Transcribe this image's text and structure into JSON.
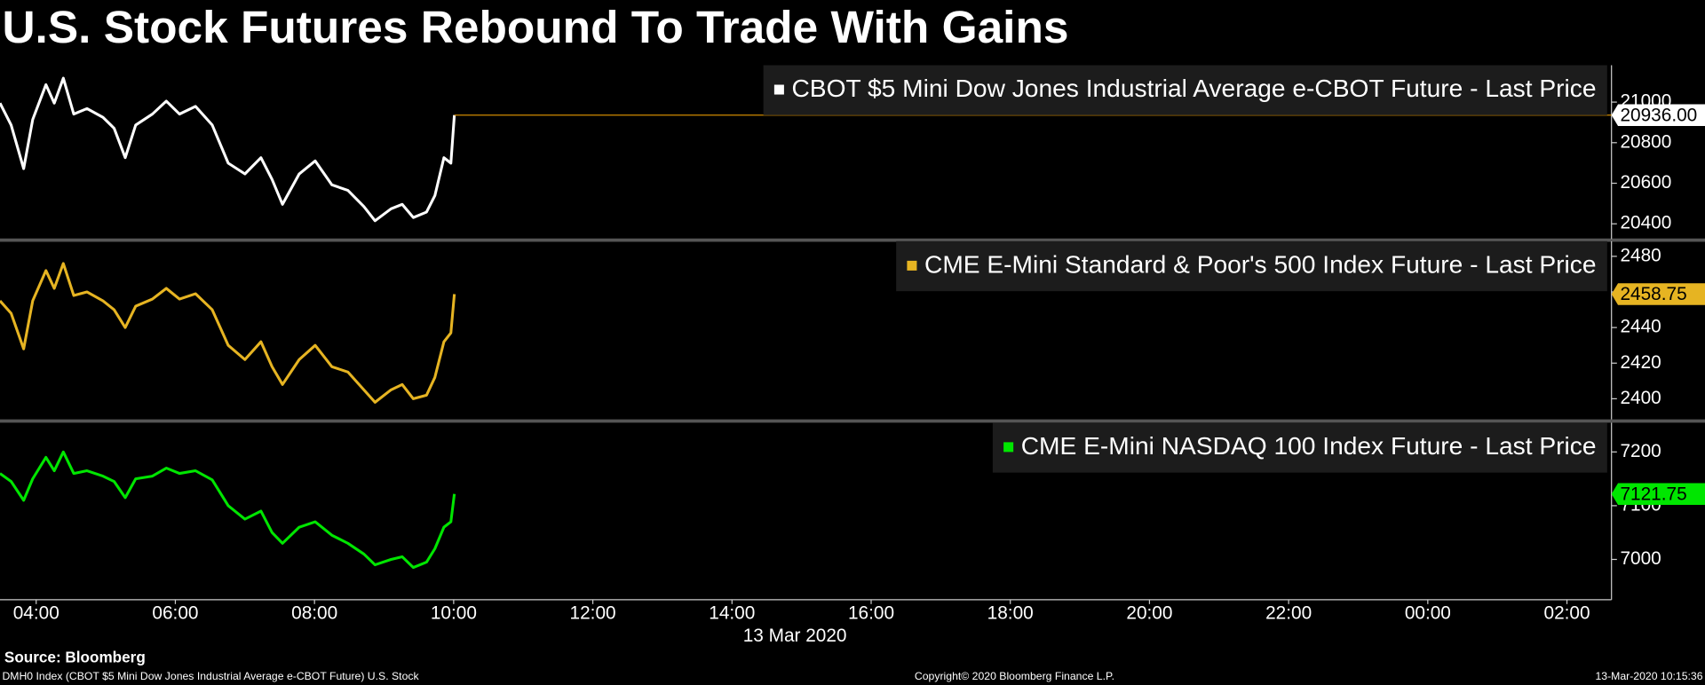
{
  "title": "U.S. Stock Futures Rebound To Trade With Gains",
  "source": "Source: Bloomberg",
  "footer": {
    "left": "DMH0 Index (CBOT $5 Mini Dow Jones Industrial Average e-CBOT Future) U.S. Stock",
    "center": "Copyright© 2020 Bloomberg Finance L.P.",
    "right": "13-Mar-2020 10:15:36"
  },
  "chart_data": [
    {
      "type": "line",
      "xlim": [
        3.48,
        26.64
      ],
      "ylim": [
        20325,
        21182
      ],
      "yticks": [
        20400,
        20600,
        20800,
        21000
      ],
      "x": [
        3.48,
        3.64,
        3.82,
        3.95,
        4.14,
        4.26,
        4.39,
        4.54,
        4.73,
        4.96,
        5.12,
        5.28,
        5.43,
        5.67,
        5.87,
        6.06,
        6.29,
        6.53,
        6.76,
        7.0,
        7.23,
        7.39,
        7.54,
        7.78,
        8.01,
        8.25,
        8.48,
        8.71,
        8.87,
        9.1,
        9.26,
        9.42,
        9.61,
        9.73,
        9.86,
        9.96,
        10.01
      ],
      "last_price_line_color": "#d08a00",
      "series": [
        {
          "name": "CBOT $5 Mini Dow Jones Industrial Average e-CBOT Future - Last Price",
          "color": "#ffffff",
          "values": [
            20995,
            20887,
            20672,
            20914,
            21086,
            20995,
            21118,
            20941,
            20968,
            20925,
            20871,
            20726,
            20887,
            20941,
            21005,
            20941,
            20979,
            20887,
            20699,
            20646,
            20726,
            20619,
            20496,
            20646,
            20710,
            20592,
            20565,
            20485,
            20415,
            20474,
            20496,
            20431,
            20458,
            20539,
            20726,
            20699,
            20936
          ],
          "value_labels": [
            null,
            null,
            null,
            null,
            null,
            null,
            null,
            null,
            null,
            null,
            null,
            null,
            null,
            null,
            null,
            null,
            null,
            null,
            null,
            null,
            null,
            null,
            null,
            null,
            null,
            null,
            null,
            null,
            null,
            null,
            null,
            null,
            null,
            null,
            null,
            null,
            "20936.00"
          ]
        }
      ]
    },
    {
      "type": "line",
      "xlim": [
        3.48,
        26.64
      ],
      "ylim": [
        2388.4,
        2488.5
      ],
      "yticks": [
        2400,
        2420,
        2440,
        2460,
        2480
      ],
      "x": [
        3.48,
        3.64,
        3.82,
        3.95,
        4.14,
        4.26,
        4.39,
        4.54,
        4.73,
        4.96,
        5.12,
        5.28,
        5.43,
        5.67,
        5.87,
        6.06,
        6.29,
        6.53,
        6.76,
        7.0,
        7.23,
        7.39,
        7.54,
        7.78,
        8.01,
        8.25,
        8.48,
        8.71,
        8.87,
        9.1,
        9.26,
        9.42,
        9.61,
        9.73,
        9.86,
        9.96,
        10.01
      ],
      "series": [
        {
          "name": "CME E-Mini Standard & Poor's 500 Index Future - Last Price",
          "color": "#e6b422",
          "values": [
            2455,
            2448,
            2428,
            2455,
            2472,
            2462,
            2476,
            2458,
            2460,
            2455,
            2450,
            2440,
            2452,
            2456,
            2462,
            2456,
            2459,
            2450,
            2430,
            2422,
            2432,
            2418,
            2408,
            2422,
            2430,
            2418,
            2415,
            2405,
            2398,
            2405,
            2408,
            2400,
            2402,
            2412,
            2432,
            2437,
            2458.75
          ]
        }
      ]
    },
    {
      "type": "line",
      "xlim": [
        3.48,
        26.64
      ],
      "ylim": [
        6925,
        7254.5
      ],
      "yticks": [
        7000,
        7100,
        7200
      ],
      "x": [
        3.48,
        3.64,
        3.82,
        3.95,
        4.14,
        4.26,
        4.39,
        4.54,
        4.73,
        4.96,
        5.12,
        5.28,
        5.43,
        5.67,
        5.87,
        6.06,
        6.29,
        6.53,
        6.76,
        7.0,
        7.23,
        7.39,
        7.54,
        7.78,
        8.01,
        8.25,
        8.48,
        8.71,
        8.87,
        9.1,
        9.26,
        9.42,
        9.61,
        9.73,
        9.86,
        9.96,
        10.01
      ],
      "xticks": [
        {
          "value": 4,
          "label": "04:00"
        },
        {
          "value": 6,
          "label": "06:00"
        },
        {
          "value": 8,
          "label": "08:00"
        },
        {
          "value": 10,
          "label": "10:00"
        },
        {
          "value": 12,
          "label": "12:00"
        },
        {
          "value": 14,
          "label": "14:00"
        },
        {
          "value": 16,
          "label": "16:00"
        },
        {
          "value": 18,
          "label": "18:00"
        },
        {
          "value": 20,
          "label": "20:00"
        },
        {
          "value": 22,
          "label": "22:00"
        },
        {
          "value": 24,
          "label": "00:00"
        },
        {
          "value": 26,
          "label": "02:00"
        }
      ],
      "xlabel": "13 Mar 2020",
      "series": [
        {
          "name": "CME E-Mini NASDAQ 100 Index Future - Last Price",
          "color": "#00e600",
          "values": [
            7160,
            7145,
            7110,
            7150,
            7190,
            7165,
            7200,
            7160,
            7165,
            7155,
            7145,
            7115,
            7150,
            7155,
            7170,
            7160,
            7165,
            7148,
            7100,
            7075,
            7090,
            7050,
            7030,
            7060,
            7070,
            7045,
            7030,
            7010,
            6990,
            7000,
            7005,
            6985,
            6995,
            7020,
            7060,
            7070,
            7121.75
          ]
        }
      ]
    }
  ]
}
